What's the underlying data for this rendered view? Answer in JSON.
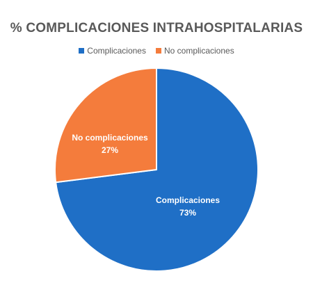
{
  "chart_data": {
    "type": "pie",
    "title": "% COMPLICACIONES INTRAHOSPITALARIAS",
    "legend_position": "top",
    "slices": [
      {
        "name": "Complicaciones",
        "value": 73,
        "label": "73%",
        "color": "#1f6fc6"
      },
      {
        "name": "No complicaciones",
        "value": 27,
        "label": "27%",
        "color": "#f47c3c"
      }
    ]
  }
}
